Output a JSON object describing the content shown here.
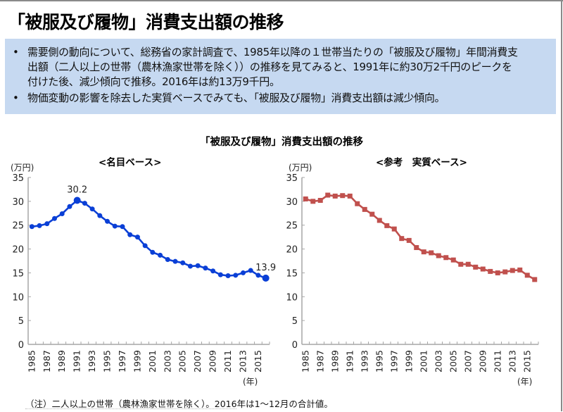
{
  "page": {
    "title": "「被服及び履物」消費支出額の推移",
    "bullets": [
      "需要側の動向について、総務省の家計調査で、1985年以降の１世帯当たりの「被服及び履物」年間消費支出額（二人以上の世帯（農林漁家世帯を除く））の推移を見てみると、1991年に約30万2千円のピークを付けた後、減少傾向で推移。2016年は約13万9千円。",
      "物価変動の影響を除去した実質ベースでみても、「被服及び履物」消費支出額は減少傾向。"
    ],
    "bullet_symbol": "•",
    "figure_title": "「被服及び履物」消費支出額の推移",
    "note": "（注）二人以上の世帯（農林漁家世帯を除く）。2016年は1～12月の合計値。",
    "colors": {
      "box_background": "#c6d9f1",
      "nominal_series": "#0a3fd6",
      "real_series": "#c0504d",
      "axis": "#a6a6a6"
    }
  },
  "chart_data": [
    {
      "type": "line",
      "title": "<名目ベース>",
      "ylabel": "(万円)",
      "xlabel": "(年)",
      "ylim": [
        0,
        35
      ],
      "yticks": [
        0,
        5,
        10,
        15,
        20,
        25,
        30,
        35
      ],
      "x": [
        1985,
        1986,
        1987,
        1988,
        1989,
        1990,
        1991,
        1992,
        1993,
        1994,
        1995,
        1996,
        1997,
        1998,
        1999,
        2000,
        2001,
        2002,
        2003,
        2004,
        2005,
        2006,
        2007,
        2008,
        2009,
        2010,
        2011,
        2012,
        2013,
        2014,
        2015,
        2016
      ],
      "xtick_labels": [
        "1985",
        "1987",
        "1989",
        "1991",
        "1993",
        "1995",
        "1997",
        "1999",
        "2001",
        "2003",
        "2005",
        "2007",
        "2009",
        "2011",
        "2013",
        "2015"
      ],
      "grid": false,
      "marker": "circle",
      "series": [
        {
          "name": "名目",
          "color": "#0a3fd6",
          "values": [
            24.7,
            24.9,
            25.3,
            26.4,
            27.4,
            28.9,
            30.2,
            29.6,
            28.4,
            27.0,
            25.8,
            24.8,
            24.7,
            23.0,
            22.5,
            20.7,
            19.3,
            18.7,
            17.8,
            17.4,
            17.1,
            16.4,
            16.5,
            16.0,
            15.4,
            14.6,
            14.4,
            14.5,
            15.0,
            15.5,
            14.5,
            13.9
          ]
        }
      ],
      "annotations": [
        {
          "x": 1991,
          "text": "30.2",
          "position": "above"
        },
        {
          "x": 2016,
          "text": "13.9",
          "position": "above"
        }
      ]
    },
    {
      "type": "line",
      "title": "<参考　実質ベース>",
      "ylabel": "(万円)",
      "xlabel": "(年)",
      "ylim": [
        0,
        35
      ],
      "yticks": [
        0,
        5,
        10,
        15,
        20,
        25,
        30,
        35
      ],
      "x": [
        1985,
        1986,
        1987,
        1988,
        1989,
        1990,
        1991,
        1992,
        1993,
        1994,
        1995,
        1996,
        1997,
        1998,
        1999,
        2000,
        2001,
        2002,
        2003,
        2004,
        2005,
        2006,
        2007,
        2008,
        2009,
        2010,
        2011,
        2012,
        2013,
        2014,
        2015,
        2016
      ],
      "xtick_labels": [
        "1985",
        "1987",
        "1989",
        "1991",
        "1993",
        "1995",
        "1997",
        "1999",
        "2001",
        "2003",
        "2005",
        "2007",
        "2009",
        "2011",
        "2013",
        "2015"
      ],
      "grid": false,
      "marker": "square",
      "series": [
        {
          "name": "実質",
          "color": "#c0504d",
          "values": [
            30.5,
            30.0,
            30.2,
            31.3,
            31.1,
            31.2,
            31.1,
            29.5,
            28.3,
            27.3,
            26.0,
            24.9,
            24.2,
            22.2,
            21.8,
            20.3,
            19.4,
            19.2,
            18.6,
            18.2,
            17.7,
            16.8,
            16.8,
            16.2,
            15.8,
            15.3,
            15.0,
            15.2,
            15.5,
            15.6,
            14.5,
            13.6
          ]
        }
      ],
      "annotations": []
    }
  ]
}
